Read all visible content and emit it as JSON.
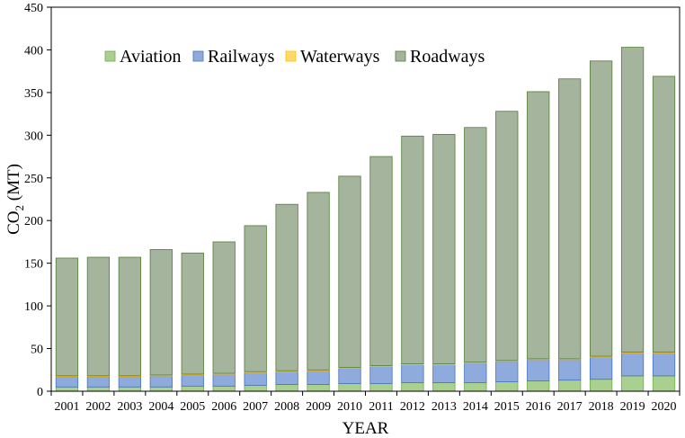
{
  "chart_data": {
    "type": "bar",
    "stacked": true,
    "title": "",
    "xlabel": "YEAR",
    "ylabel_main": "CO",
    "ylabel_sub": "2",
    "ylabel_unit": " (MT)",
    "ylim": [
      0,
      450
    ],
    "yticks": [
      0,
      50,
      100,
      150,
      200,
      250,
      300,
      350,
      400,
      450
    ],
    "grid": false,
    "legend_position": "top-left",
    "categories": [
      "2001",
      "2002",
      "2003",
      "2004",
      "2005",
      "2006",
      "2007",
      "2008",
      "2009",
      "2010",
      "2011",
      "2012",
      "2013",
      "2014",
      "2015",
      "2016",
      "2017",
      "2018",
      "2019",
      "2020"
    ],
    "series": [
      {
        "name": "Aviation",
        "color": "#a9d08e",
        "stroke": "#70ad47",
        "values": [
          5,
          5,
          5,
          5,
          6,
          6,
          7,
          8,
          8,
          9,
          9,
          10,
          10,
          10,
          11,
          12,
          13,
          14,
          18,
          18
        ]
      },
      {
        "name": "Railways",
        "color": "#8faadc",
        "stroke": "#4472c4",
        "values": [
          12,
          12,
          12,
          13,
          13,
          14,
          15,
          15,
          16,
          18,
          20,
          21,
          21,
          23,
          24,
          25,
          24,
          26,
          27,
          27
        ]
      },
      {
        "name": "Waterways",
        "color": "#ffd966",
        "stroke": "#ffc000",
        "values": [
          1,
          1,
          1,
          1,
          1,
          1,
          1,
          1,
          1,
          1,
          1,
          1,
          1,
          1,
          1,
          1,
          1,
          1,
          1,
          1
        ]
      },
      {
        "name": "Roadways",
        "color": "#a5b49c",
        "stroke": "#507e32",
        "values": [
          138,
          139,
          139,
          147,
          142,
          154,
          171,
          195,
          208,
          224,
          245,
          267,
          269,
          275,
          292,
          313,
          328,
          346,
          357,
          323
        ]
      }
    ]
  }
}
